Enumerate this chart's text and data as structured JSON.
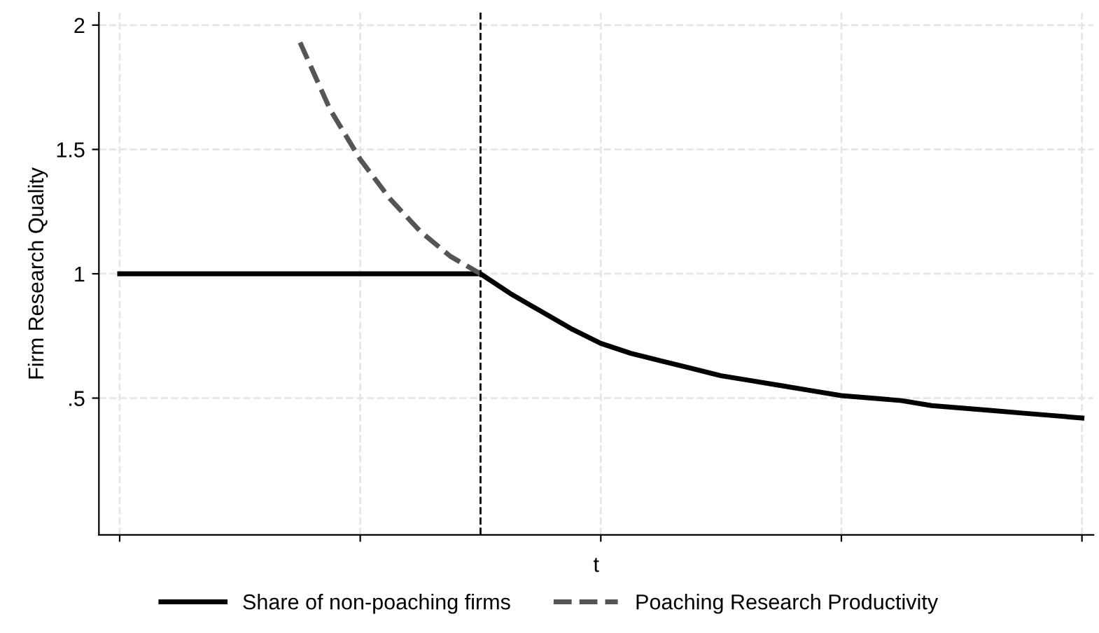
{
  "chart_data": {
    "type": "line",
    "xlabel": "t",
    "ylabel": "Firm Research Quality",
    "categories": [
      null,
      null,
      null,
      null,
      null,
      null,
      null,
      null,
      null,
      null,
      null,
      null,
      null,
      null,
      null,
      null,
      null,
      null,
      null,
      null,
      null,
      null,
      null,
      null,
      null,
      null,
      null,
      null,
      null,
      null,
      null,
      null,
      null
    ],
    "ylim": [
      -0.05,
      2.05
    ],
    "yticks": [
      {
        "value": 0.5,
        "label": ".5"
      },
      1,
      1.5,
      2
    ],
    "grid": true,
    "legend": "bottom",
    "marker": "none",
    "tick_labels": "y",
    "series": [
      {
        "name": "Share of non-poaching firms",
        "color": "#000000",
        "line_style": "solid",
        "values": [
          1,
          1,
          1,
          1,
          1,
          1,
          1,
          1,
          1,
          1,
          1,
          1,
          1,
          0.92,
          0.85,
          0.78,
          0.72,
          0.68,
          0.65,
          0.62,
          0.59,
          0.57,
          0.55,
          0.53,
          0.51,
          0.5,
          0.49,
          0.47,
          0.46,
          0.45,
          0.44,
          0.43,
          0.42
        ]
      },
      {
        "name": "Poaching Research Productivity",
        "color": "#555555",
        "line_style": "dashed",
        "values": [
          null,
          null,
          null,
          null,
          null,
          null,
          1.93,
          1.66,
          1.46,
          1.3,
          1.17,
          1.07,
          1.0,
          null,
          null,
          null,
          null,
          null,
          null,
          null,
          null,
          null,
          null,
          null,
          null,
          null,
          null,
          null,
          null,
          null,
          null,
          null,
          null
        ]
      }
    ]
  }
}
